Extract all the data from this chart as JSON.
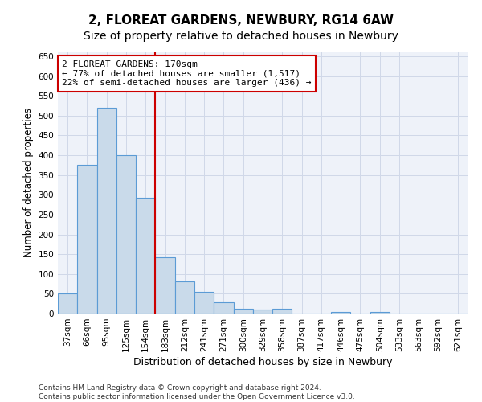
{
  "title": "2, FLOREAT GARDENS, NEWBURY, RG14 6AW",
  "subtitle": "Size of property relative to detached houses in Newbury",
  "xlabel": "Distribution of detached houses by size in Newbury",
  "ylabel": "Number of detached properties",
  "categories": [
    "37sqm",
    "66sqm",
    "95sqm",
    "125sqm",
    "154sqm",
    "183sqm",
    "212sqm",
    "241sqm",
    "271sqm",
    "300sqm",
    "329sqm",
    "358sqm",
    "387sqm",
    "417sqm",
    "446sqm",
    "475sqm",
    "504sqm",
    "533sqm",
    "563sqm",
    "592sqm",
    "621sqm"
  ],
  "values": [
    50,
    375,
    520,
    400,
    292,
    142,
    82,
    55,
    28,
    12,
    10,
    12,
    0,
    0,
    4,
    0,
    5,
    0,
    0,
    0,
    0
  ],
  "bar_color": "#c9daea",
  "bar_edge_color": "#5b9bd5",
  "vline_x_index": 4.5,
  "vline_color": "#cc0000",
  "annotation_line1": "2 FLOREAT GARDENS: 170sqm",
  "annotation_line2": "← 77% of detached houses are smaller (1,517)",
  "annotation_line3": "22% of semi-detached houses are larger (436) →",
  "annotation_box_color": "#ffffff",
  "annotation_box_edge": "#cc0000",
  "ylim": [
    0,
    660
  ],
  "yticks": [
    0,
    50,
    100,
    150,
    200,
    250,
    300,
    350,
    400,
    450,
    500,
    550,
    600,
    650
  ],
  "grid_color": "#d0d8e8",
  "bg_color": "#eef2f9",
  "footer": "Contains HM Land Registry data © Crown copyright and database right 2024.\nContains public sector information licensed under the Open Government Licence v3.0.",
  "title_fontsize": 11,
  "subtitle_fontsize": 10,
  "label_fontsize": 8.5,
  "tick_fontsize": 7.5,
  "footer_fontsize": 6.5,
  "annot_fontsize": 8
}
